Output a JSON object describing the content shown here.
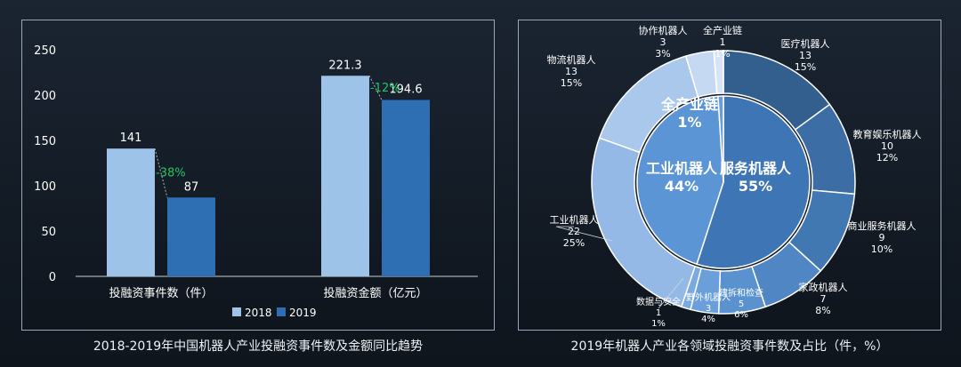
{
  "left_chart": {
    "caption": "2018-2019年中国机器人产业投融资事件数及金额同比趋势",
    "legend": [
      "2018",
      "2019"
    ],
    "y_ticks": [
      "0",
      "50",
      "100",
      "150",
      "200",
      "250"
    ],
    "change_labels": [
      "-38%",
      "-12%"
    ]
  },
  "right_chart": {
    "caption": "2019年机器人产业各领域投融资事件数及占比（件，%）",
    "inner_labels": [
      {
        "name": "服务机器人",
        "pct": "55%"
      },
      {
        "name": "工业机器人",
        "pct": "44%"
      },
      {
        "name": "全产业链",
        "pct": "1%"
      }
    ],
    "outer_labels": [
      {
        "name": "医疗机器人",
        "count": "13",
        "pct": "15%"
      },
      {
        "name": "教育娱乐机器人",
        "count": "10",
        "pct": "12%"
      },
      {
        "name": "商业服务机器人",
        "count": "9",
        "pct": "10%"
      },
      {
        "name": "家政机器人",
        "count": "7",
        "pct": "8%"
      },
      {
        "name": "建拆和检查",
        "count": "5",
        "pct": "6%"
      },
      {
        "name": "野外机器人",
        "count": "3",
        "pct": "4%"
      },
      {
        "name": "数据与安全",
        "count": "1",
        "pct": "1%"
      },
      {
        "name": "工业机器人",
        "count": "22",
        "pct": "25%"
      },
      {
        "name": "物流机器人",
        "count": "13",
        "pct": "15%"
      },
      {
        "name": "协作机器人",
        "count": "3",
        "pct": "3%"
      },
      {
        "name": "全产业链",
        "count": "1",
        "pct": "1%"
      }
    ]
  },
  "chart_data": [
    {
      "type": "bar",
      "categories": [
        "投融资事件数（件）",
        "投融资金额（亿元）"
      ],
      "series": [
        {
          "name": "2018",
          "values": [
            141,
            221.3
          ],
          "color": "#9ec3e8"
        },
        {
          "name": "2019",
          "values": [
            87,
            194.6
          ],
          "color": "#2e6fb3"
        }
      ],
      "value_labels": [
        [
          "141",
          "87"
        ],
        [
          "221.3",
          "194.6"
        ]
      ],
      "ylim": [
        0,
        250
      ],
      "grid": false,
      "legend_position": "bottom"
    },
    {
      "type": "pie",
      "variant": "donut",
      "inner_ring": [
        {
          "label": "服务机器人",
          "value": 55,
          "color": "#3e76b5"
        },
        {
          "label": "工业机器人",
          "value": 44,
          "color": "#5b95d5"
        },
        {
          "label": "全产业链",
          "value": 1,
          "color": "#6a9ddb"
        }
      ],
      "outer_ring": [
        {
          "label": "医疗机器人",
          "value": 13,
          "color": "#335f8f"
        },
        {
          "label": "教育娱乐机器人",
          "value": 10,
          "color": "#3c6da4"
        },
        {
          "label": "商业服务机器人",
          "value": 9,
          "color": "#4278b2"
        },
        {
          "label": "家政机器人",
          "value": 7,
          "color": "#4f86c3"
        },
        {
          "label": "建拆和检查",
          "value": 5,
          "color": "#5a92cf"
        },
        {
          "label": "野外机器人",
          "value": 3,
          "color": "#6b9fd9"
        },
        {
          "label": "数据与安全",
          "value": 1,
          "color": "#7aaae0"
        },
        {
          "label": "工业机器人",
          "value": 22,
          "color": "#94b9e6"
        },
        {
          "label": "物流机器人",
          "value": 13,
          "color": "#aac7ec"
        },
        {
          "label": "协作机器人",
          "value": 3,
          "color": "#c5d9f2"
        },
        {
          "label": "全产业链",
          "value": 1,
          "color": "#d6e4f6"
        }
      ]
    }
  ]
}
